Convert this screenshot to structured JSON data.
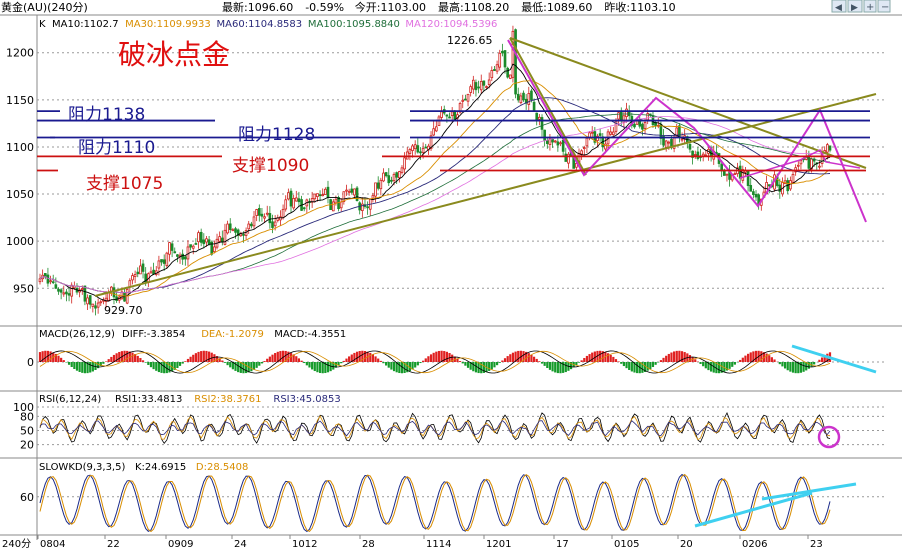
{
  "header": {
    "instrument": "黄金(AU)(240分)",
    "quote": [
      {
        "label": "最新",
        "value": "1096.60"
      },
      {
        "label": "",
        "value": "-0.59%"
      },
      {
        "label": "今开",
        "value": "1103.00"
      },
      {
        "label": "最高",
        "value": "1108.20"
      },
      {
        "label": "最低",
        "value": "1089.60"
      },
      {
        "label": "昨收",
        "value": "1103.10"
      }
    ],
    "window_buttons": [
      "prev-button",
      "next-button",
      "add-button",
      "remove-button"
    ]
  },
  "main_panel": {
    "label": "K",
    "ma_legend": [
      {
        "label": "MA10:1102.7",
        "color": "#000000"
      },
      {
        "label": "MA30:1109.9933",
        "color": "#d98e00"
      },
      {
        "label": "MA60:1104.8583",
        "color": "#2a2a7a"
      },
      {
        "label": "MA100:1095.8840",
        "color": "#1f6e3a"
      },
      {
        "label": "MA120:1094.5396",
        "color": "#e070e0"
      }
    ],
    "title": "破冰点金",
    "title_color": "#e01010",
    "yticks": [
      "1200",
      "1150",
      "1100",
      "1050",
      "1000",
      "950"
    ],
    "high_label": "1226.65",
    "low_label": "929.70",
    "levels": [
      {
        "text": "阻力1138",
        "value": 1138,
        "color": "#1a1a90",
        "kind": "resistance"
      },
      {
        "text": "阻力1128",
        "value": 1128,
        "color": "#1a1a90",
        "kind": "resistance"
      },
      {
        "text": "阻力1110",
        "value": 1110,
        "color": "#1a1a90",
        "kind": "resistance"
      },
      {
        "text": "支撑1090",
        "value": 1090,
        "color": "#cc1010",
        "kind": "support"
      },
      {
        "text": "支撑1075",
        "value": 1075,
        "color": "#cc1010",
        "kind": "support"
      }
    ]
  },
  "macd_panel": {
    "label": "MACD(26,12,9)",
    "legend": [
      {
        "label": "DIFF:-3.3854",
        "color": "#000000"
      },
      {
        "label": "DEA:-1.2079",
        "color": "#d98e00"
      },
      {
        "label": "MACD:-4.3551",
        "color": "#000000"
      }
    ],
    "yticks": [
      "0"
    ]
  },
  "rsi_panel": {
    "label": "RSI(6,12,24)",
    "legend": [
      {
        "label": "RSI1:33.4813",
        "color": "#000000"
      },
      {
        "label": "RSI2:38.3761",
        "color": "#d98e00"
      },
      {
        "label": "RSI3:45.0853",
        "color": "#2a2a7a"
      }
    ],
    "yticks": [
      "100",
      "80",
      "50",
      "20"
    ]
  },
  "kd_panel": {
    "label": "SLOWKD(9,3,3,5)",
    "legend": [
      {
        "label": "K:24.6915",
        "color": "#000000"
      },
      {
        "label": "D:28.5408",
        "color": "#d98e00"
      }
    ],
    "yticks": [
      "60"
    ]
  },
  "x_axis": {
    "period": "240分",
    "labels": [
      "0804",
      "22",
      "0909",
      "24",
      "1012",
      "28",
      "1114",
      "1201",
      "17",
      "0105",
      "20",
      "0206",
      "23"
    ]
  },
  "chart_data": {
    "type": "candlestick",
    "title": "破冰点金",
    "ylim": [
      910,
      1240
    ],
    "yticks": [
      950,
      1000,
      1050,
      1100,
      1150,
      1200
    ],
    "x_categories": [
      "0804",
      "22",
      "0909",
      "24",
      "1012",
      "28",
      "1114",
      "1201",
      "17",
      "0105",
      "20",
      "0206",
      "23"
    ],
    "close_path": [
      {
        "date": "0804",
        "close": 958
      },
      {
        "date": "22",
        "close": 935
      },
      {
        "date": "0909",
        "close": 985
      },
      {
        "date": "24",
        "close": 1010
      },
      {
        "date": "1012",
        "close": 1045
      },
      {
        "date": "28",
        "close": 1045
      },
      {
        "date": "1114",
        "close": 1118
      },
      {
        "date": "1201",
        "close": 1190
      },
      {
        "date": "17",
        "close": 1085
      },
      {
        "date": "0105",
        "close": 1135
      },
      {
        "date": "20",
        "close": 1095
      },
      {
        "date": "0206",
        "close": 1050
      },
      {
        "date": "23",
        "close": 1100
      }
    ],
    "swing_high": 1226.65,
    "swing_low": 929.7,
    "resistance": [
      1138,
      1128,
      1110
    ],
    "support": [
      1090,
      1075
    ],
    "last": 1096.6,
    "change_pct": -0.59,
    "open": 1103.0,
    "high": 1108.2,
    "low": 1089.6,
    "prev_close": 1103.1,
    "indicators": {
      "MA10": 1102.7,
      "MA30": 1109.9933,
      "MA60": 1104.8583,
      "MA100": 1095.884,
      "MA120": 1094.5396,
      "MACD": {
        "DIFF": -3.3854,
        "DEA": -1.2079,
        "MACD": -4.3551
      },
      "RSI": {
        "RSI1": 33.4813,
        "RSI2": 38.3761,
        "RSI3": 45.0853
      },
      "SLOWKD": {
        "K": 24.6915,
        "D": 28.5408
      }
    }
  }
}
